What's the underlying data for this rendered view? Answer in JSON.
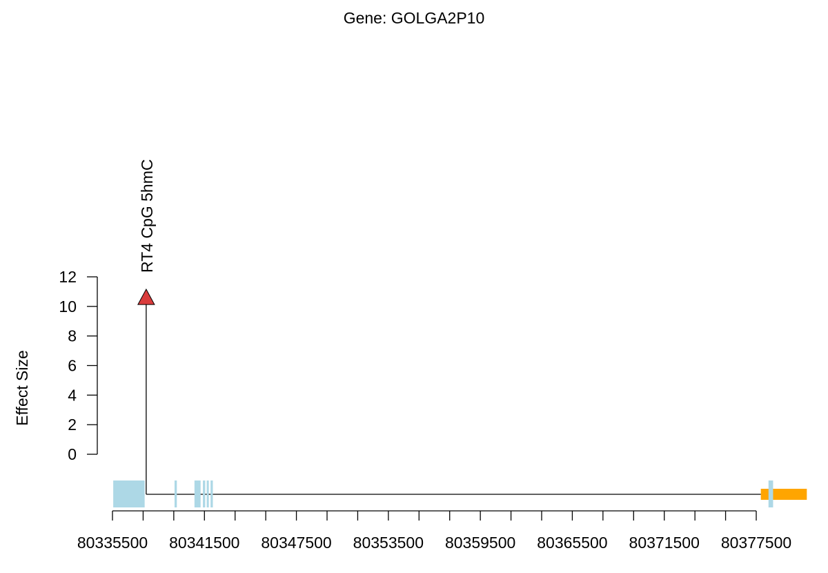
{
  "chart_data": {
    "type": "scatter",
    "title": "Gene: GOLGA2P10",
    "ylabel": "Effect Size",
    "xlabel": "",
    "ylim": [
      0,
      12
    ],
    "yticks": [
      0,
      2,
      4,
      6,
      8,
      10,
      12
    ],
    "xlim": [
      80335500,
      80377500
    ],
    "xticks_labeled": [
      80335500,
      80341500,
      80347500,
      80353500,
      80359500,
      80365500,
      80371500,
      80377500
    ],
    "x_minor_tick_step": 2000,
    "points": [
      {
        "x": 80337700,
        "y": 10.6,
        "label": "RT4 CpG 5hmC",
        "marker": "triangle",
        "color": "#d93b3b"
      }
    ],
    "gene_track": {
      "line_start": 80337700,
      "line_end": 80377800,
      "exons": [
        {
          "start": 80335550,
          "end": 80337600
        },
        {
          "start": 80339550,
          "end": 80339700
        },
        {
          "start": 80340850,
          "end": 80341250
        },
        {
          "start": 80341400,
          "end": 80341550
        },
        {
          "start": 80341650,
          "end": 80341750
        },
        {
          "start": 80341900,
          "end": 80342050
        },
        {
          "start": 80378300,
          "end": 80378600
        }
      ],
      "highlight": {
        "start": 80377800,
        "end": 80380800
      },
      "exon_color": "#add8e6",
      "highlight_color": "#ffa500"
    }
  }
}
